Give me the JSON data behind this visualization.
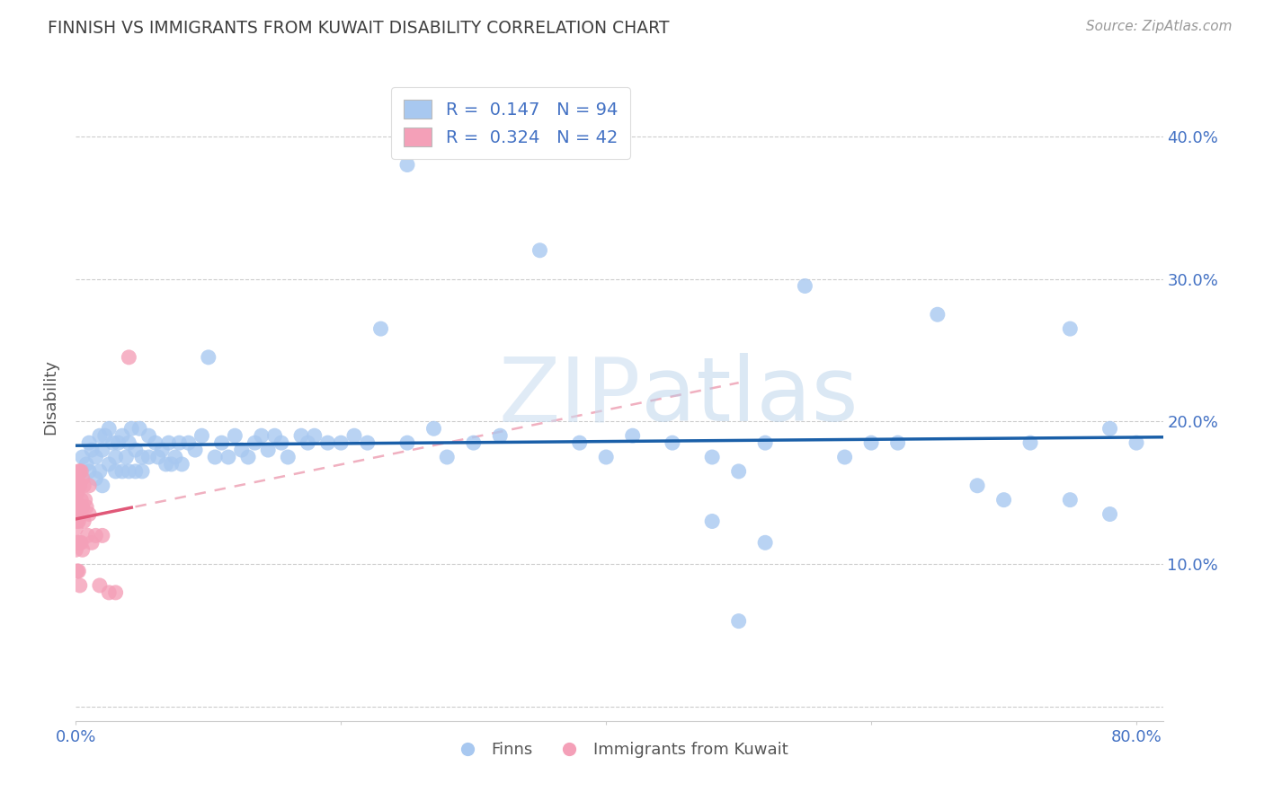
{
  "title": "FINNISH VS IMMIGRANTS FROM KUWAIT DISABILITY CORRELATION CHART",
  "source": "Source: ZipAtlas.com",
  "ylabel": "Disability",
  "xlim": [
    0.0,
    0.82
  ],
  "ylim": [
    -0.01,
    0.445
  ],
  "yticks": [
    0.0,
    0.1,
    0.2,
    0.3,
    0.4
  ],
  "ytick_labels": [
    "",
    "10.0%",
    "20.0%",
    "30.0%",
    "40.0%"
  ],
  "xticks": [
    0.0,
    0.2,
    0.4,
    0.6,
    0.8
  ],
  "xtick_labels": [
    "0.0%",
    "",
    "",
    "",
    "80.0%"
  ],
  "finns_color": "#a8c8f0",
  "kuwait_color": "#f4a0b8",
  "trendline_finns_color": "#1a5fa8",
  "trendline_kuwait_color": "#e05878",
  "trendline_kuwait_dashed_color": "#f0b0c0",
  "R_finns": "0.147",
  "N_finns": "94",
  "R_kuwait": "0.324",
  "N_kuwait": "42",
  "watermark_color": "#d0e4f5",
  "finns_x": [
    0.005,
    0.008,
    0.01,
    0.01,
    0.012,
    0.015,
    0.015,
    0.018,
    0.018,
    0.02,
    0.02,
    0.022,
    0.025,
    0.025,
    0.028,
    0.03,
    0.03,
    0.032,
    0.035,
    0.035,
    0.038,
    0.04,
    0.04,
    0.042,
    0.045,
    0.045,
    0.048,
    0.05,
    0.05,
    0.055,
    0.055,
    0.06,
    0.062,
    0.065,
    0.068,
    0.07,
    0.072,
    0.075,
    0.078,
    0.08,
    0.085,
    0.09,
    0.095,
    0.1,
    0.105,
    0.11,
    0.115,
    0.12,
    0.125,
    0.13,
    0.135,
    0.14,
    0.145,
    0.15,
    0.155,
    0.16,
    0.17,
    0.175,
    0.18,
    0.19,
    0.2,
    0.21,
    0.22,
    0.23,
    0.25,
    0.27,
    0.28,
    0.3,
    0.32,
    0.35,
    0.38,
    0.4,
    0.42,
    0.45,
    0.48,
    0.5,
    0.52,
    0.55,
    0.58,
    0.6,
    0.62,
    0.65,
    0.68,
    0.7,
    0.72,
    0.75,
    0.78,
    0.48,
    0.52,
    0.5,
    0.75,
    0.78,
    0.8,
    0.25
  ],
  "finns_y": [
    0.175,
    0.17,
    0.185,
    0.165,
    0.18,
    0.175,
    0.16,
    0.19,
    0.165,
    0.18,
    0.155,
    0.19,
    0.195,
    0.17,
    0.185,
    0.175,
    0.165,
    0.185,
    0.165,
    0.19,
    0.175,
    0.185,
    0.165,
    0.195,
    0.18,
    0.165,
    0.195,
    0.175,
    0.165,
    0.19,
    0.175,
    0.185,
    0.175,
    0.18,
    0.17,
    0.185,
    0.17,
    0.175,
    0.185,
    0.17,
    0.185,
    0.18,
    0.19,
    0.245,
    0.175,
    0.185,
    0.175,
    0.19,
    0.18,
    0.175,
    0.185,
    0.19,
    0.18,
    0.19,
    0.185,
    0.175,
    0.19,
    0.185,
    0.19,
    0.185,
    0.185,
    0.19,
    0.185,
    0.265,
    0.185,
    0.195,
    0.175,
    0.185,
    0.19,
    0.32,
    0.185,
    0.175,
    0.19,
    0.185,
    0.175,
    0.165,
    0.185,
    0.295,
    0.175,
    0.185,
    0.185,
    0.275,
    0.155,
    0.145,
    0.185,
    0.145,
    0.135,
    0.13,
    0.115,
    0.06,
    0.265,
    0.195,
    0.185,
    0.38
  ],
  "kuwait_x": [
    0.0,
    0.0,
    0.0,
    0.0,
    0.0,
    0.001,
    0.001,
    0.001,
    0.001,
    0.001,
    0.001,
    0.002,
    0.002,
    0.002,
    0.002,
    0.002,
    0.002,
    0.003,
    0.003,
    0.003,
    0.003,
    0.003,
    0.004,
    0.004,
    0.004,
    0.005,
    0.005,
    0.005,
    0.006,
    0.006,
    0.007,
    0.008,
    0.009,
    0.01,
    0.01,
    0.012,
    0.015,
    0.018,
    0.02,
    0.025,
    0.03,
    0.04
  ],
  "kuwait_y": [
    0.155,
    0.145,
    0.135,
    0.125,
    0.11,
    0.16,
    0.15,
    0.14,
    0.13,
    0.115,
    0.095,
    0.165,
    0.155,
    0.14,
    0.13,
    0.115,
    0.095,
    0.165,
    0.155,
    0.14,
    0.115,
    0.085,
    0.165,
    0.145,
    0.115,
    0.16,
    0.14,
    0.11,
    0.155,
    0.13,
    0.145,
    0.14,
    0.12,
    0.155,
    0.135,
    0.115,
    0.12,
    0.085,
    0.12,
    0.08,
    0.08,
    0.245
  ]
}
